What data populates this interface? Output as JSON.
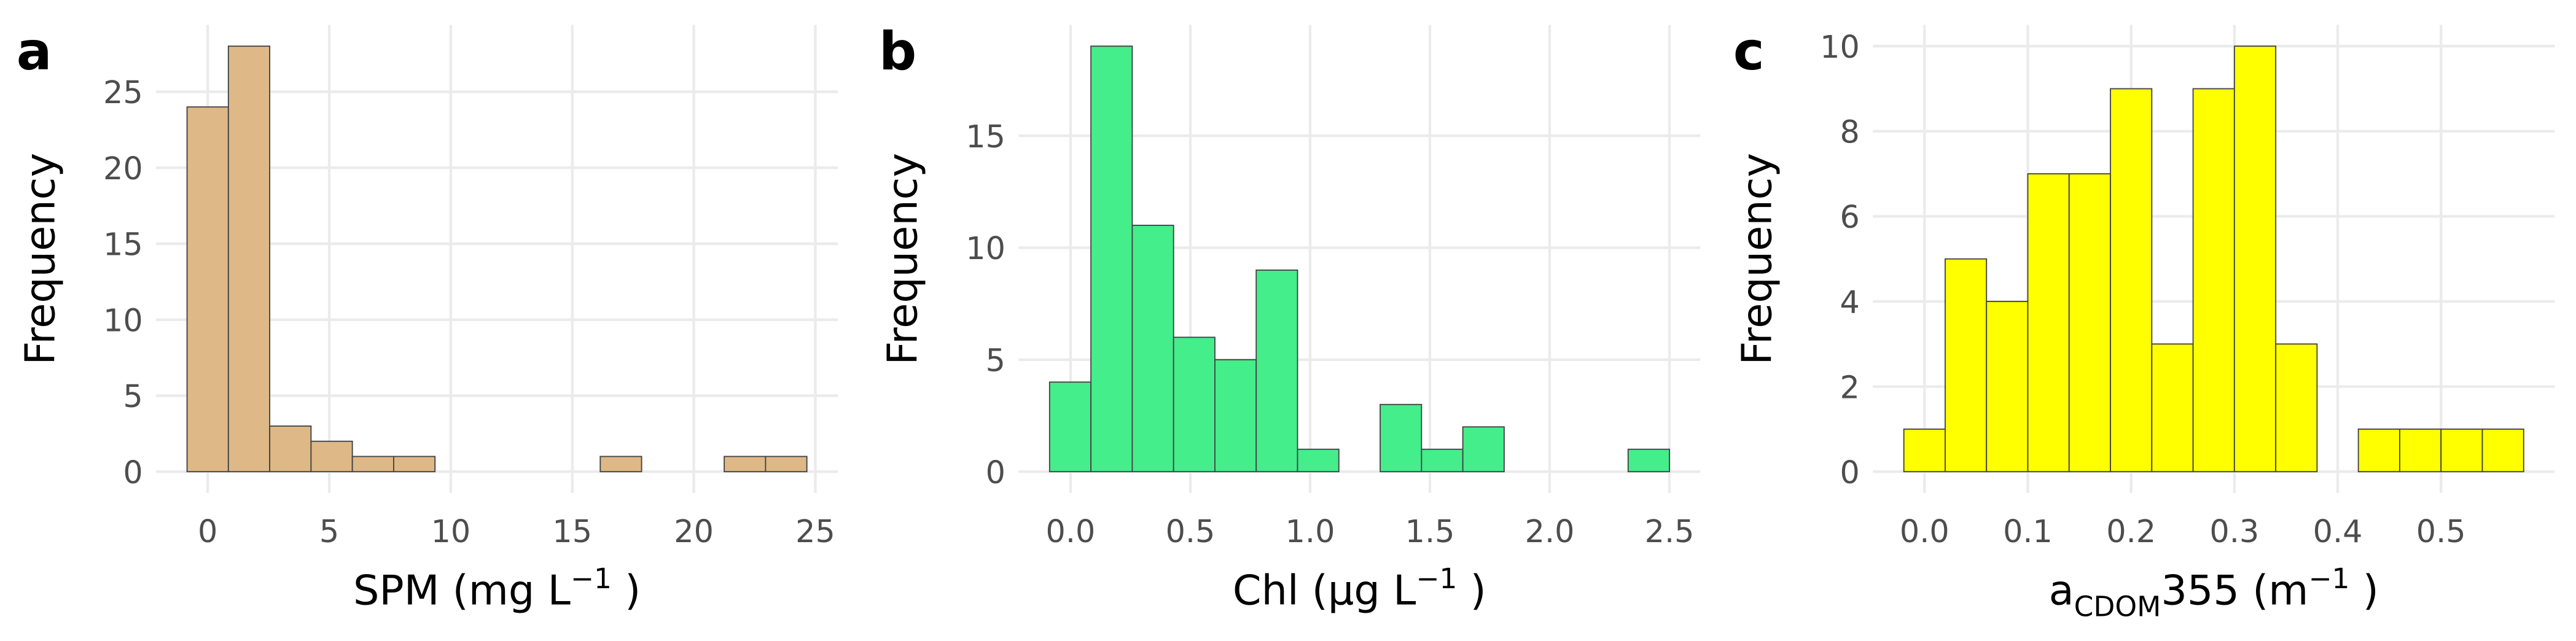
{
  "chart_data": [
    {
      "type": "histogram",
      "panel_label": "a",
      "ylabel": "Frequency",
      "xlabel": [
        {
          "text": "SPM (mg L"
        },
        {
          "text": "−1",
          "script": "super"
        },
        {
          "text": " )"
        }
      ],
      "bins": [
        -0.85,
        0.85,
        2.55,
        4.25,
        5.95,
        7.65,
        9.35,
        11.05,
        12.75,
        14.45,
        16.15,
        17.85,
        19.55,
        21.25,
        22.95,
        24.65
      ],
      "counts": [
        24,
        28,
        3,
        2,
        1,
        1,
        0,
        0,
        0,
        0,
        1,
        0,
        0,
        1,
        1
      ],
      "color": "#deb887",
      "xlim": [
        -2.125,
        25.925
      ],
      "xticks": [
        0,
        5,
        10,
        15,
        20,
        25
      ],
      "ylim": [
        -1.4,
        29.4
      ],
      "yticks": [
        0,
        5,
        10,
        15,
        20,
        25
      ],
      "grid": true
    },
    {
      "type": "histogram",
      "panel_label": "b",
      "ylabel": "Frequency",
      "xlabel": [
        {
          "text": "Chl (µg L"
        },
        {
          "text": "−1",
          "script": "super"
        },
        {
          "text": " )"
        }
      ],
      "bins": [
        -0.0875,
        0.085,
        0.2575,
        0.43,
        0.6025,
        0.775,
        0.9475,
        1.12,
        1.2925,
        1.465,
        1.6375,
        1.81,
        1.9825,
        2.155,
        2.3275,
        2.5
      ],
      "counts": [
        4,
        19,
        11,
        6,
        5,
        9,
        1,
        0,
        3,
        1,
        2,
        0,
        0,
        0,
        1
      ],
      "color": "#43ee8b",
      "xlim": [
        -0.217,
        2.629
      ],
      "xticks": [
        {
          "value": 0,
          "label": "0.0"
        },
        0.5,
        {
          "value": 1,
          "label": "1.0"
        },
        1.5,
        {
          "value": 2,
          "label": "2.0"
        },
        2.5
      ],
      "ylim": [
        -0.95,
        19.95
      ],
      "yticks": [
        0,
        5,
        10,
        15
      ],
      "grid": true
    },
    {
      "type": "histogram",
      "panel_label": "c",
      "ylabel": "Frequency",
      "xlabel": [
        {
          "text": "a"
        },
        {
          "text": "CDOM",
          "script": "sub"
        },
        {
          "text": "355 (m"
        },
        {
          "text": "−1",
          "script": "super"
        },
        {
          "text": " )"
        }
      ],
      "bins": [
        -0.02,
        0.02,
        0.06,
        0.1,
        0.14,
        0.18,
        0.22,
        0.26,
        0.3,
        0.34,
        0.38,
        0.42,
        0.46,
        0.5,
        0.54,
        0.58
      ],
      "counts": [
        1,
        5,
        4,
        7,
        7,
        9,
        3,
        9,
        10,
        3,
        0,
        1,
        1,
        1,
        1
      ],
      "color": "#ffff00",
      "xlim": [
        -0.05,
        0.61
      ],
      "xticks": [
        {
          "value": 0,
          "label": "0.0"
        },
        0.1,
        0.2,
        0.3,
        0.4,
        0.5
      ],
      "ylim": [
        -0.5,
        10.5
      ],
      "yticks": [
        0,
        2,
        4,
        6,
        8,
        10
      ],
      "grid": true
    }
  ]
}
